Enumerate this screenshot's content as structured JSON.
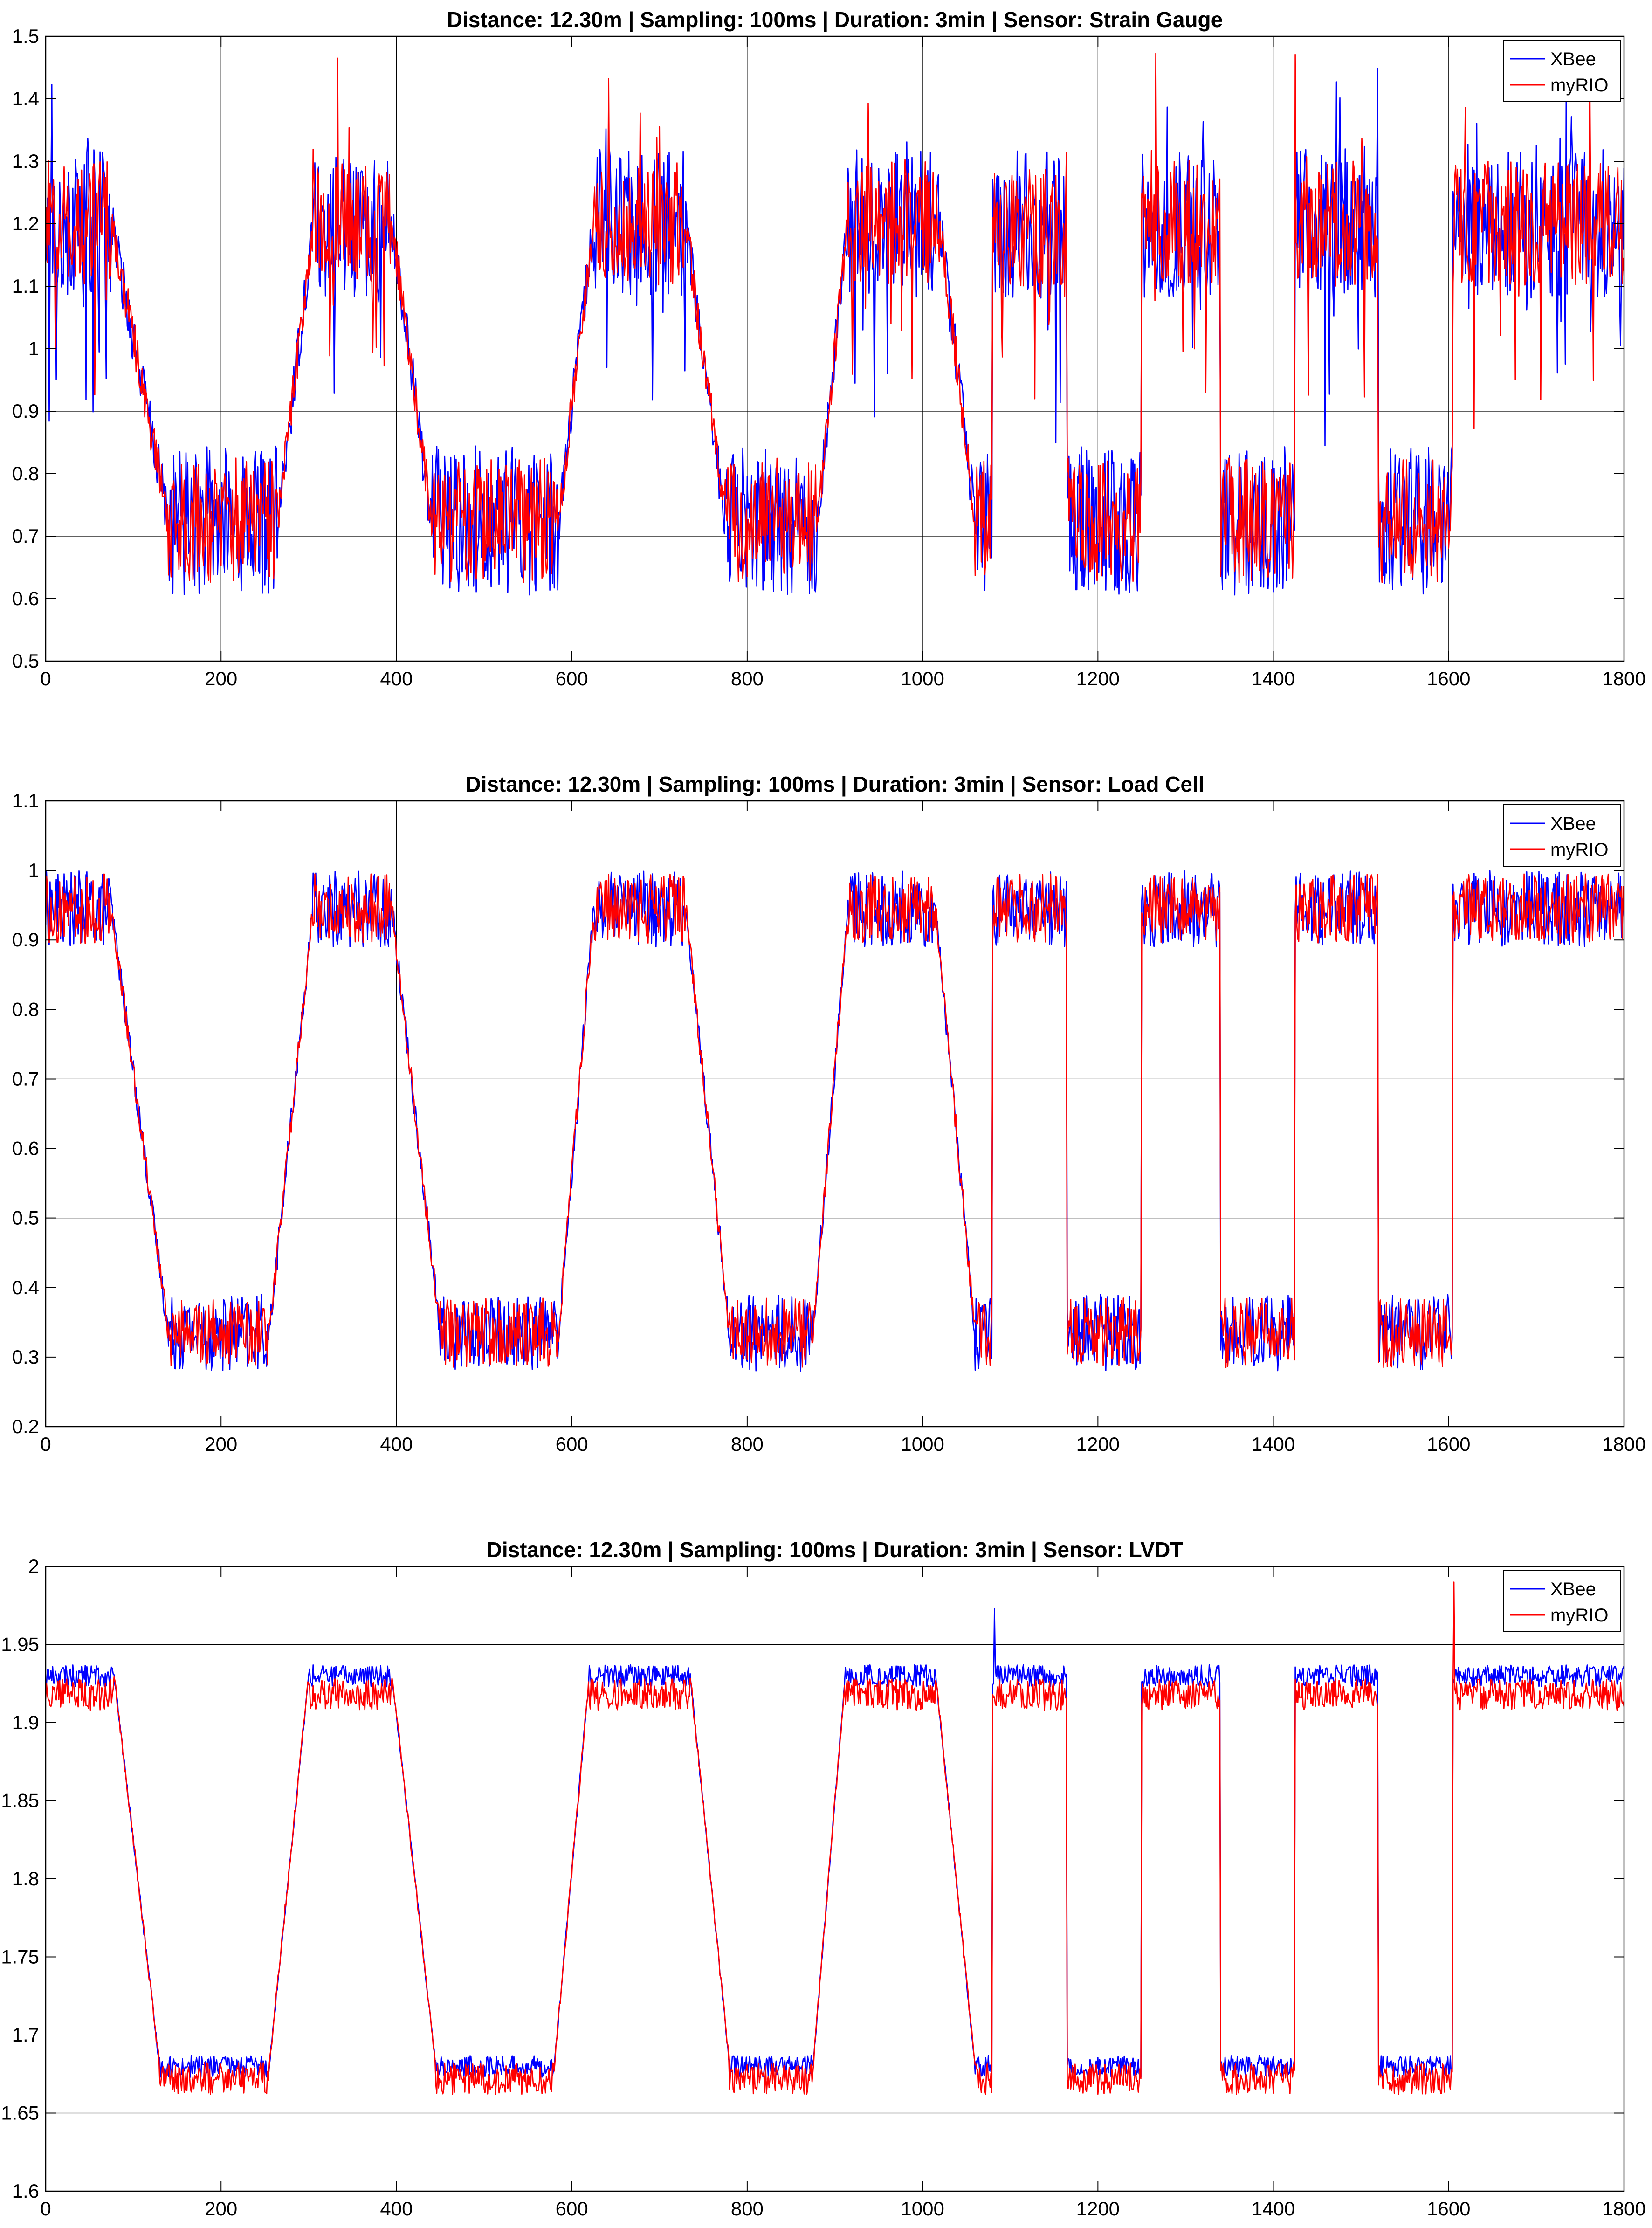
{
  "chart_data": [
    {
      "type": "line",
      "title": "Distance: 12.30m | Sampling: 100ms | Duration: 3min | Sensor: Strain Gauge",
      "xlabel": "",
      "ylabel": "",
      "xlim": [
        0,
        1800
      ],
      "ylim": [
        0.5,
        1.5
      ],
      "xticks": [
        "0",
        "200",
        "400",
        "600",
        "800",
        "1000",
        "1200",
        "1400",
        "1600",
        "1800"
      ],
      "yticks": [
        "0.5",
        "0.6",
        "0.7",
        "0.8",
        "0.9",
        "1",
        "1.1",
        "1.2",
        "1.3",
        "1.4",
        "1.5"
      ],
      "grid_x": [
        200,
        400,
        800,
        1000,
        1200,
        1400,
        1600
      ],
      "grid_y": [
        0.7,
        0.9
      ],
      "legend": [
        "XBee",
        "myRIO"
      ],
      "legend_position": "top-right",
      "high": 1.2,
      "low": 0.725,
      "noise": {
        "XBee": 0.12,
        "myRIO": 0.1,
        "high_spikes": 0.28
      },
      "cycle_end": 1800,
      "segments": [
        {
          "type": "hold",
          "x0": 0,
          "x1": 75,
          "level": "high"
        },
        {
          "type": "ramp",
          "x0": 75,
          "x1": 140,
          "from": "high",
          "to": "low"
        },
        {
          "type": "hold",
          "x0": 140,
          "x1": 265,
          "level": "low"
        },
        {
          "type": "ramp",
          "x0": 265,
          "x1": 305,
          "from": "low",
          "to": "high"
        },
        {
          "type": "hold",
          "x0": 305,
          "x1": 395,
          "level": "high"
        },
        {
          "type": "ramp",
          "x0": 395,
          "x1": 440,
          "from": "high",
          "to": "low"
        },
        {
          "type": "hold",
          "x0": 440,
          "x1": 585,
          "level": "low"
        },
        {
          "type": "ramp",
          "x0": 585,
          "x1": 625,
          "from": "low",
          "to": "high"
        },
        {
          "type": "hold",
          "x0": 625,
          "x1": 730,
          "level": "high"
        },
        {
          "type": "ramp",
          "x0": 730,
          "x1": 775,
          "from": "high",
          "to": "low"
        },
        {
          "type": "hold",
          "x0": 775,
          "x1": 880,
          "level": "low"
        },
        {
          "type": "ramp",
          "x0": 880,
          "x1": 915,
          "from": "low",
          "to": "high"
        },
        {
          "type": "hold",
          "x0": 915,
          "x1": 1020,
          "level": "high"
        },
        {
          "type": "ramp",
          "x0": 1020,
          "x1": 1060,
          "from": "high",
          "to": "low"
        },
        {
          "type": "hold",
          "x0": 1060,
          "x1": 1080,
          "level": "low"
        },
        {
          "type": "hold",
          "x0": 1080,
          "x1": 1165,
          "level": "high"
        },
        {
          "type": "hold",
          "x0": 1165,
          "x1": 1250,
          "level": "low"
        },
        {
          "type": "hold",
          "x0": 1250,
          "x1": 1340,
          "level": "high"
        },
        {
          "type": "hold",
          "x0": 1340,
          "x1": 1425,
          "level": "low"
        },
        {
          "type": "hold",
          "x0": 1425,
          "x1": 1520,
          "level": "high"
        },
        {
          "type": "hold",
          "x0": 1520,
          "x1": 1605,
          "level": "low"
        },
        {
          "type": "hold",
          "x0": 1605,
          "x1": 1800,
          "level": "high"
        }
      ]
    },
    {
      "type": "line",
      "title": "Distance: 12.30m | Sampling: 100ms | Duration: 3min | Sensor: Load Cell",
      "xlabel": "",
      "ylabel": "",
      "xlim": [
        0,
        1800
      ],
      "ylim": [
        0.2,
        1.1
      ],
      "xticks": [
        "0",
        "200",
        "400",
        "600",
        "800",
        "1000",
        "1200",
        "1400",
        "1600",
        "1800"
      ],
      "yticks": [
        "0.2",
        "0.3",
        "0.4",
        "0.5",
        "0.6",
        "0.7",
        "0.8",
        "0.9",
        "1",
        "1.1"
      ],
      "grid_x": [
        400
      ],
      "grid_y": [
        0.5,
        0.7
      ],
      "legend": [
        "XBee",
        "myRIO"
      ],
      "legend_position": "top-right",
      "high": 0.945,
      "low": 0.335,
      "noise": {
        "XBee": 0.055,
        "myRIO": 0.05,
        "high_spikes": 0.0
      },
      "segments": [
        {
          "type": "hold",
          "x0": 0,
          "x1": 75,
          "level": "high"
        },
        {
          "type": "ramp",
          "x0": 75,
          "x1": 140,
          "from": "high",
          "to": "low"
        },
        {
          "type": "hold",
          "x0": 140,
          "x1": 255,
          "level": "low"
        },
        {
          "type": "ramp",
          "x0": 255,
          "x1": 305,
          "from": "low",
          "to": "high"
        },
        {
          "type": "hold",
          "x0": 305,
          "x1": 395,
          "level": "high"
        },
        {
          "type": "ramp",
          "x0": 395,
          "x1": 450,
          "from": "high",
          "to": "low"
        },
        {
          "type": "hold",
          "x0": 450,
          "x1": 585,
          "level": "low"
        },
        {
          "type": "ramp",
          "x0": 585,
          "x1": 625,
          "from": "low",
          "to": "high"
        },
        {
          "type": "hold",
          "x0": 625,
          "x1": 730,
          "level": "high"
        },
        {
          "type": "ramp",
          "x0": 730,
          "x1": 780,
          "from": "high",
          "to": "low"
        },
        {
          "type": "hold",
          "x0": 780,
          "x1": 875,
          "level": "low"
        },
        {
          "type": "ramp",
          "x0": 875,
          "x1": 915,
          "from": "low",
          "to": "high"
        },
        {
          "type": "hold",
          "x0": 915,
          "x1": 1015,
          "level": "high"
        },
        {
          "type": "ramp",
          "x0": 1015,
          "x1": 1060,
          "from": "high",
          "to": "low"
        },
        {
          "type": "hold",
          "x0": 1060,
          "x1": 1080,
          "level": "low"
        },
        {
          "type": "hold",
          "x0": 1080,
          "x1": 1165,
          "level": "high"
        },
        {
          "type": "hold",
          "x0": 1165,
          "x1": 1250,
          "level": "low"
        },
        {
          "type": "hold",
          "x0": 1250,
          "x1": 1340,
          "level": "high"
        },
        {
          "type": "hold",
          "x0": 1340,
          "x1": 1425,
          "level": "low"
        },
        {
          "type": "hold",
          "x0": 1425,
          "x1": 1520,
          "level": "high"
        },
        {
          "type": "hold",
          "x0": 1520,
          "x1": 1605,
          "level": "low"
        },
        {
          "type": "hold",
          "x0": 1605,
          "x1": 1800,
          "level": "high"
        }
      ]
    },
    {
      "type": "line",
      "title": "Distance: 12.30m | Sampling: 100ms | Duration: 3min | Sensor: LVDT",
      "xlabel": "",
      "ylabel": "",
      "xlim": [
        0,
        1800
      ],
      "ylim": [
        1.6,
        2.0
      ],
      "xticks": [
        "0",
        "200",
        "400",
        "600",
        "800",
        "1000",
        "1200",
        "1400",
        "1600",
        "1800"
      ],
      "yticks": [
        "1.6",
        "1.65",
        "1.7",
        "1.75",
        "1.8",
        "1.85",
        "1.9",
        "1.95",
        "2"
      ],
      "grid_x": [],
      "grid_y": [
        1.65,
        1.95
      ],
      "legend": [
        "XBee",
        "myRIO"
      ],
      "legend_position": "top-right",
      "high": 1.93,
      "low": 1.68,
      "offset_myRIO_high": -0.012,
      "offset_myRIO_low": -0.008,
      "noise": {
        "XBee": 0.007,
        "myRIO": 0.01,
        "high_spikes": 0.0
      },
      "segments": [
        {
          "type": "hold",
          "x0": 0,
          "x1": 78,
          "level": "high"
        },
        {
          "type": "ramp",
          "x0": 78,
          "x1": 130,
          "from": "high",
          "to": "low"
        },
        {
          "type": "hold",
          "x0": 130,
          "x1": 255,
          "level": "low"
        },
        {
          "type": "ramp",
          "x0": 255,
          "x1": 300,
          "from": "low",
          "to": "high"
        },
        {
          "type": "hold",
          "x0": 300,
          "x1": 395,
          "level": "high"
        },
        {
          "type": "ramp",
          "x0": 395,
          "x1": 445,
          "from": "high",
          "to": "low"
        },
        {
          "type": "hold",
          "x0": 445,
          "x1": 580,
          "level": "low"
        },
        {
          "type": "ramp",
          "x0": 580,
          "x1": 620,
          "from": "low",
          "to": "high"
        },
        {
          "type": "hold",
          "x0": 620,
          "x1": 735,
          "level": "high"
        },
        {
          "type": "ramp",
          "x0": 735,
          "x1": 780,
          "from": "high",
          "to": "low"
        },
        {
          "type": "hold",
          "x0": 780,
          "x1": 875,
          "level": "low"
        },
        {
          "type": "ramp",
          "x0": 875,
          "x1": 912,
          "from": "low",
          "to": "high"
        },
        {
          "type": "hold",
          "x0": 912,
          "x1": 1015,
          "level": "high"
        },
        {
          "type": "ramp",
          "x0": 1015,
          "x1": 1060,
          "from": "high",
          "to": "low"
        },
        {
          "type": "hold",
          "x0": 1060,
          "x1": 1080,
          "level": "low"
        },
        {
          "type": "hold",
          "x0": 1080,
          "x1": 1165,
          "level": "high"
        },
        {
          "type": "hold",
          "x0": 1165,
          "x1": 1250,
          "level": "low"
        },
        {
          "type": "hold",
          "x0": 1250,
          "x1": 1340,
          "level": "high"
        },
        {
          "type": "hold",
          "x0": 1340,
          "x1": 1425,
          "level": "low"
        },
        {
          "type": "hold",
          "x0": 1425,
          "x1": 1520,
          "level": "high"
        },
        {
          "type": "hold",
          "x0": 1520,
          "x1": 1605,
          "level": "low"
        },
        {
          "type": "hold",
          "x0": 1605,
          "x1": 1800,
          "level": "high"
        }
      ],
      "spikes": [
        {
          "x": 1082,
          "value": 1.973,
          "series": "XBee"
        },
        {
          "x": 1606,
          "value": 1.99,
          "series": "myRIO"
        }
      ]
    }
  ],
  "colors": {
    "XBee": "#0000ff",
    "myRIO": "#ff0000",
    "grid": "#000000",
    "axes": "#000000"
  }
}
